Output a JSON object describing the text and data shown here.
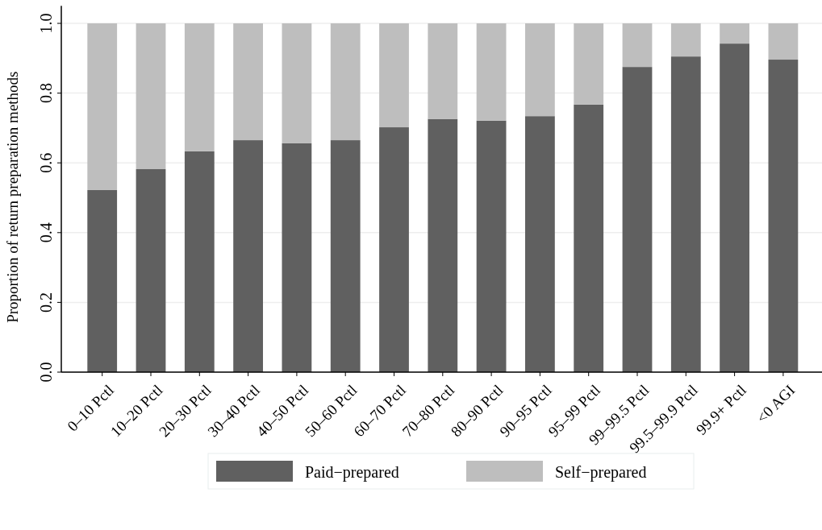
{
  "chart_data": {
    "type": "bar",
    "stacked": true,
    "ylabel": "Proportion of return preparation methods",
    "categories": [
      "0–10 Pctl",
      "10–20 Pctl",
      "20–30 Pctl",
      "30–40 Pctl",
      "40–50 Pctl",
      "50–60 Pctl",
      "60–70 Pctl",
      "70–80 Pctl",
      "80–90 Pctl",
      "90–95 Pctl",
      "95–99 Pctl",
      "99–99.5 Pctl",
      "99.5–99.9 Pctl",
      "99.9+ Pctl",
      "<0 AGI"
    ],
    "series": [
      {
        "name": "Paid−prepared",
        "color": "#606060",
        "values": [
          0.522,
          0.582,
          0.633,
          0.665,
          0.656,
          0.665,
          0.702,
          0.726,
          0.721,
          0.734,
          0.767,
          0.875,
          0.905,
          0.942,
          0.896
        ]
      },
      {
        "name": "Self−prepared",
        "color": "#bebebe",
        "values": [
          0.478,
          0.418,
          0.367,
          0.335,
          0.344,
          0.335,
          0.298,
          0.274,
          0.279,
          0.266,
          0.233,
          0.125,
          0.095,
          0.058,
          0.104
        ]
      }
    ],
    "ylim": [
      0,
      1.05
    ],
    "yticks": [
      {
        "value": 0,
        "label": "0.0"
      },
      {
        "value": 0.2,
        "label": "0.2"
      },
      {
        "value": 0.4,
        "label": "0.4"
      },
      {
        "value": 0.6,
        "label": "0.6"
      },
      {
        "value": 0.8,
        "label": "0.8"
      },
      {
        "value": 1,
        "label": "1.0"
      }
    ],
    "grid": "y",
    "legend": "bottom"
  }
}
